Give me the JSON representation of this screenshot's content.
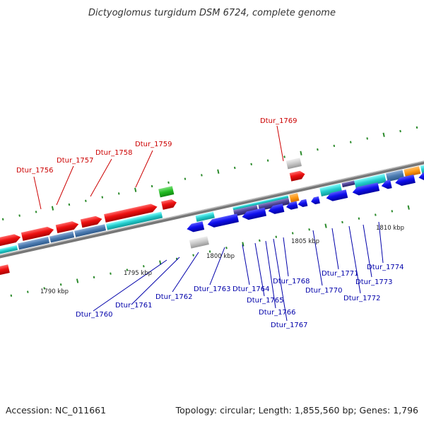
{
  "title": "Dictyoglomus turgidum DSM 6724, complete genome",
  "footer": {
    "accession": "Accession: NC_011661",
    "summary": "Topology: circular; Length: 1,855,560 bp; Genes: 1,796"
  },
  "colors": {
    "highlight_label": "#cc0000",
    "normal_label": "#0000aa",
    "backbone": "#777777",
    "tick": "#2a8a2a"
  },
  "kbp_labels": [
    "1790 kbp",
    "1795 kbp",
    "1800 kbp",
    "1805 kbp",
    "1810 kbp"
  ],
  "genes_top": [
    {
      "name": "Dtur_1756",
      "color": "red"
    },
    {
      "name": "Dtur_1757",
      "color": "red"
    },
    {
      "name": "Dtur_1758",
      "color": "red"
    },
    {
      "name": "Dtur_1759",
      "color": "red"
    },
    {
      "name": "Dtur_1769",
      "color": "red"
    }
  ],
  "genes_bottom": [
    {
      "name": "Dtur_1760"
    },
    {
      "name": "Dtur_1761"
    },
    {
      "name": "Dtur_1762"
    },
    {
      "name": "Dtur_1763"
    },
    {
      "name": "Dtur_1764"
    },
    {
      "name": "Dtur_1765"
    },
    {
      "name": "Dtur_1766"
    },
    {
      "name": "Dtur_1767"
    },
    {
      "name": "Dtur_1768"
    },
    {
      "name": "Dtur_1770"
    },
    {
      "name": "Dtur_1771"
    },
    {
      "name": "Dtur_1772"
    },
    {
      "name": "Dtur_1773"
    },
    {
      "name": "Dtur_1774"
    }
  ]
}
